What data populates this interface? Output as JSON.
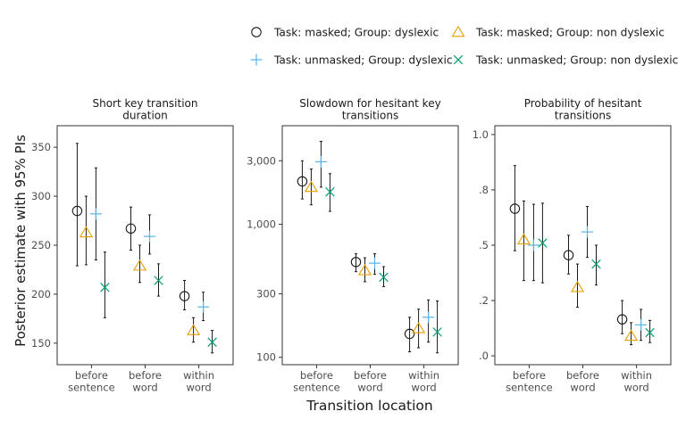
{
  "figure": {
    "ylabel": "Posterior estimate with 95% PIs",
    "xlabel": "Transition location",
    "legend": [
      {
        "label": "Task: masked; Group: dyslexic",
        "shape": "circle",
        "color": "#1a1a1a"
      },
      {
        "label": "Task: masked; Group: non dyslexic",
        "shape": "triangle",
        "color": "#E69F00"
      },
      {
        "label": "Task: unmasked; Group: dyslexic",
        "shape": "plus",
        "color": "#56B4E9"
      },
      {
        "label": "Task: unmasked; Group: non dyslexic",
        "shape": "cross",
        "color": "#009E73"
      }
    ]
  },
  "chart_data": [
    {
      "type": "scatter",
      "title": "Short key transition\nduration",
      "categories": [
        "before\nsentence",
        "before\nword",
        "within\nword"
      ],
      "scale": "linear",
      "ylim": [
        128,
        372
      ],
      "yticks": [
        150,
        200,
        250,
        300,
        350
      ],
      "ytick_labels": [
        "150",
        "200",
        "250",
        "300",
        "350"
      ],
      "series": [
        {
          "name": "Task: masked; Group: dyslexic",
          "values": [
            285,
            267,
            198
          ],
          "lower": [
            229,
            245,
            184
          ],
          "upper": [
            354,
            289,
            214
          ]
        },
        {
          "name": "Task: masked; Group: non dyslexic",
          "values": [
            263,
            229,
            163
          ],
          "lower": [
            230,
            212,
            151
          ],
          "upper": [
            300,
            250,
            176
          ]
        },
        {
          "name": "Task: unmasked; Group: dyslexic",
          "values": [
            282,
            259,
            187
          ],
          "lower": [
            235,
            241,
            173
          ],
          "upper": [
            329,
            281,
            202
          ]
        },
        {
          "name": "Task: unmasked; Group: non dyslexic",
          "values": [
            207,
            214,
            151
          ],
          "lower": [
            176,
            198,
            140
          ],
          "upper": [
            243,
            231,
            163
          ]
        }
      ]
    },
    {
      "type": "scatter",
      "title": "Slowdown for hesitant key\ntransitions",
      "categories": [
        "before\nsentence",
        "before\nword",
        "within\nword"
      ],
      "scale": "log",
      "ylim": [
        88,
        5500
      ],
      "yticks": [
        100,
        300,
        1000,
        3000
      ],
      "ytick_labels": [
        "100",
        "300",
        "1,000",
        "3,000"
      ],
      "series": [
        {
          "name": "Task: masked; Group: dyslexic",
          "values": [
            2100,
            520,
            150
          ],
          "lower": [
            1550,
            440,
            110
          ],
          "upper": [
            3000,
            600,
            200
          ]
        },
        {
          "name": "Task: masked; Group: non dyslexic",
          "values": [
            1900,
            450,
            165
          ],
          "lower": [
            1400,
            370,
            118
          ],
          "upper": [
            2600,
            560,
            230
          ]
        },
        {
          "name": "Task: unmasked; Group: dyslexic",
          "values": [
            2950,
            510,
            200
          ],
          "lower": [
            1900,
            420,
            130
          ],
          "upper": [
            4200,
            600,
            270
          ]
        },
        {
          "name": "Task: unmasked; Group: non dyslexic",
          "values": [
            1750,
            400,
            155
          ],
          "lower": [
            1250,
            340,
            108
          ],
          "upper": [
            2400,
            480,
            265
          ]
        }
      ]
    },
    {
      "type": "scatter",
      "title": "Probability of hesitant\ntransitions",
      "categories": [
        "before\nsentence",
        "before\nword",
        "within\nword"
      ],
      "scale": "linear",
      "ylim": [
        -0.04,
        1.04
      ],
      "yticks": [
        0,
        0.25,
        0.5,
        0.75,
        1.0
      ],
      "ytick_labels": [
        ".0",
        ".2",
        ".5",
        ".8",
        "1.0"
      ],
      "series": [
        {
          "name": "Task: masked; Group: dyslexic",
          "values": [
            0.665,
            0.455,
            0.165
          ],
          "lower": [
            0.475,
            0.37,
            0.1
          ],
          "upper": [
            0.86,
            0.545,
            0.25
          ]
        },
        {
          "name": "Task: masked; Group: non dyslexic",
          "values": [
            0.525,
            0.31,
            0.09
          ],
          "lower": [
            0.34,
            0.22,
            0.05
          ],
          "upper": [
            0.7,
            0.415,
            0.15
          ]
        },
        {
          "name": "Task: unmasked; Group: dyslexic",
          "values": [
            0.5,
            0.56,
            0.14
          ],
          "lower": [
            0.34,
            0.445,
            0.07
          ],
          "upper": [
            0.685,
            0.675,
            0.21
          ]
        },
        {
          "name": "Task: unmasked; Group: non dyslexic",
          "values": [
            0.51,
            0.415,
            0.105
          ],
          "lower": [
            0.33,
            0.32,
            0.06
          ],
          "upper": [
            0.69,
            0.5,
            0.16
          ]
        }
      ]
    }
  ]
}
